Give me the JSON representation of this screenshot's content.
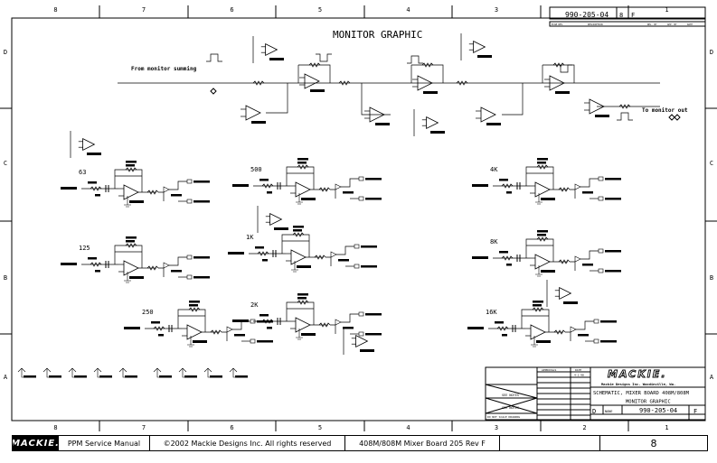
{
  "schematic": {
    "title": "MONITOR GRAPHIC",
    "note_input": "From monitor summing",
    "note_output": "To monitor out",
    "bands": [
      "63",
      "125",
      "250",
      "500",
      "1K",
      "2K",
      "4K",
      "8K",
      "16K"
    ],
    "column_labels": [
      "8",
      "7",
      "6",
      "5",
      "4",
      "3",
      "2",
      "1"
    ],
    "row_labels": [
      "D",
      "C",
      "B",
      "A"
    ]
  },
  "revision_block": {
    "dwg_no": "990-205-04",
    "sheet": "8",
    "rev": "F",
    "headers": [
      "ECO# REV.",
      "DESCRIPTION",
      "REL. BY",
      "APP. BY",
      "DATE"
    ]
  },
  "title_block": {
    "company_logo": "MACKIE.",
    "company": "Mackie Designs Inc.  Woodinville, Wa.",
    "title_line1": "SCHEMATIC, MIXER BOARD 408M/808M",
    "title_line2": "MONITOR GRAPHIC",
    "size": "D",
    "scale": "NONE",
    "dwg_no": "990-205-04",
    "rev": "F",
    "material": "SEE NOTES",
    "finish": "SEE NOTES",
    "do_not_scale": "DO NOT SCALE DRAWING",
    "approvals": "APPROVALS",
    "date_label": "DATE",
    "date": "4-1-98"
  },
  "footer": {
    "logo": "MACKIE.",
    "manual": "PPM Service Manual",
    "copyright": "©2002 Mackie Designs Inc. All rights reserved",
    "board": "408M/808M Mixer Board 205 Rev F",
    "blank": "",
    "page": "8"
  }
}
